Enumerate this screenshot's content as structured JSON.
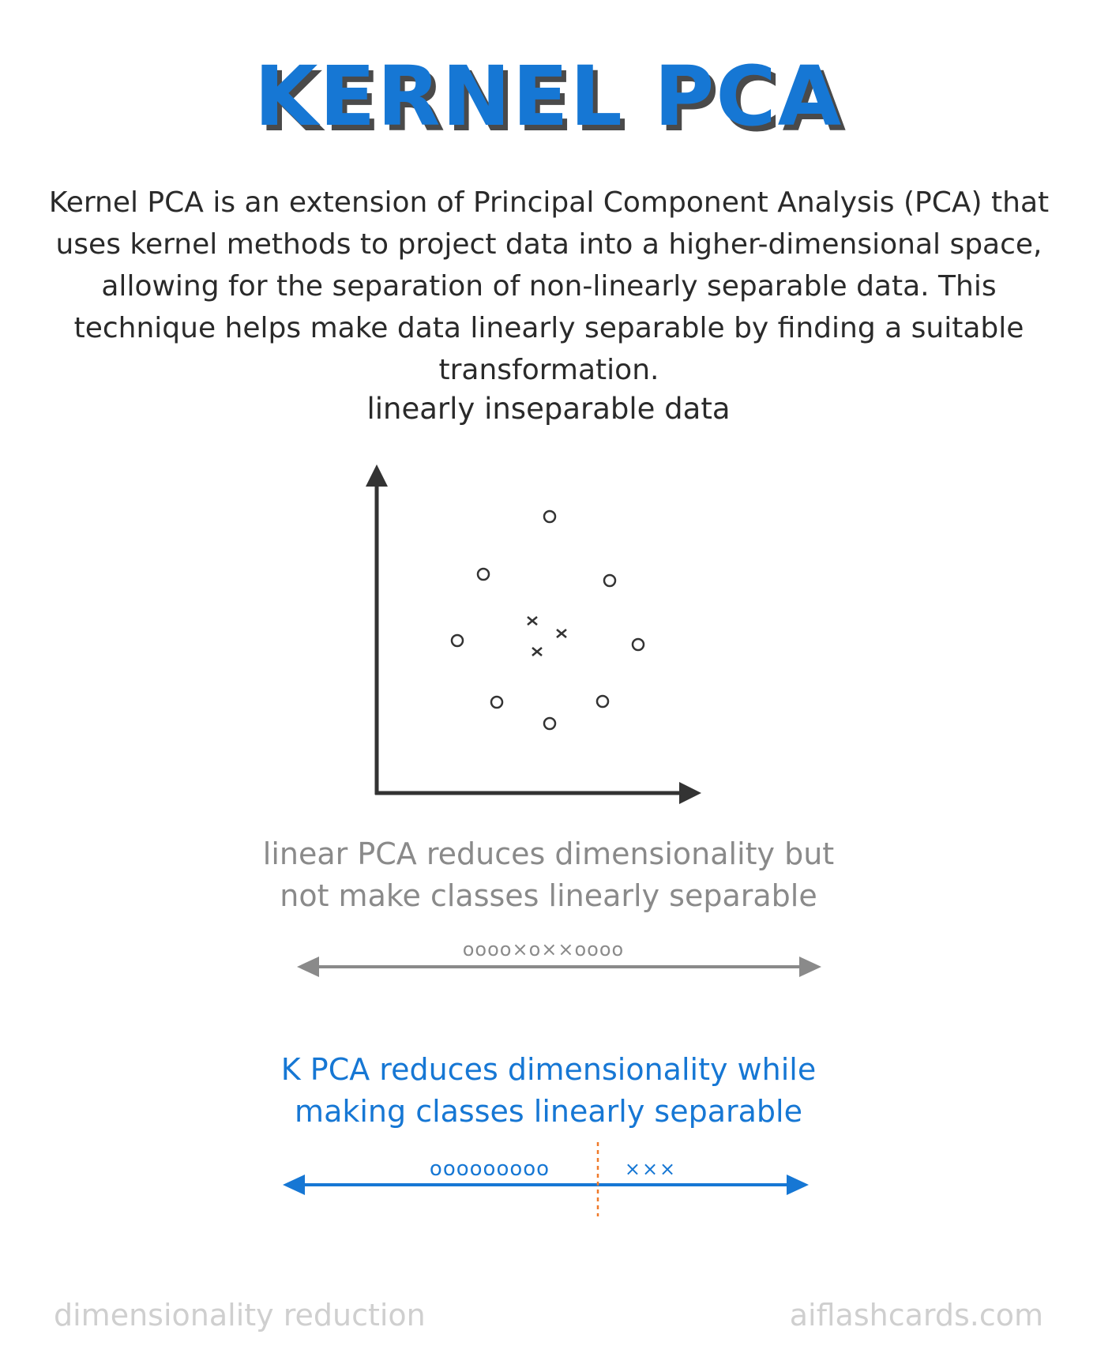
{
  "title": "KERNEL PCA",
  "description": "Kernel PCA is an extension of Principal Component Analysis (PCA) that uses kernel methods to project data into a higher-dimensional space, allowing for the separation of non-linearly separable data. This technique helps make data linearly separable by finding a suitable transformation.",
  "diagram": {
    "caption": "linearly inseparable data"
  },
  "linear_pca": {
    "caption": "linear PCA reduces dimensionality but not make classes linearly separable",
    "sequence": "oooo×o××oooo"
  },
  "kernel_pca": {
    "caption": "K PCA reduces dimensionality while making classes linearly separable",
    "circles": "ooooooooo",
    "crosses": "×××"
  },
  "footer": {
    "left": "dimensionality reduction",
    "right": "aiflashcards.com"
  },
  "colors": {
    "accent_blue": "#1677d4",
    "dark": "#333333",
    "gray": "#8a8a8a",
    "footer_gray": "#cfcfcf",
    "divider_orange": "#f07a2a"
  }
}
